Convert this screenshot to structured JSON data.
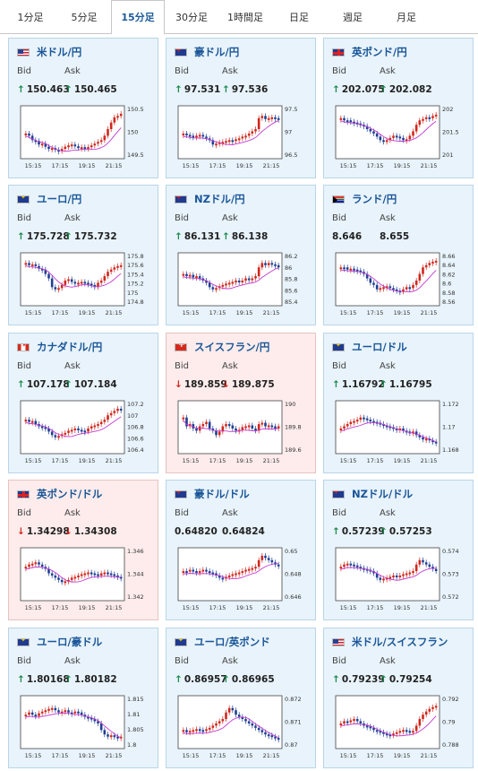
{
  "tabs": [
    "1分足",
    "5分足",
    "15分足",
    "30分足",
    "1時間足",
    "日足",
    "週足",
    "月足"
  ],
  "active_tab": "15分足",
  "labels": {
    "bid": "Bid",
    "ask": "Ask"
  },
  "x_ticks": [
    "15:15",
    "17:15",
    "19:15",
    "21:15"
  ],
  "colors": {
    "up": "#d1271d",
    "down": "#1e3f93",
    "ma": "#c43ad0",
    "card_up_bg": "#e8f3fb",
    "card_down_bg": "#fdeceb",
    "title": "#1a5698"
  },
  "pairs": [
    {
      "name": "米ドル/円",
      "flag": "us",
      "dir": "up",
      "bid": "150.463",
      "ask": "150.465",
      "ticks": [
        "150.5",
        "150",
        "149.5"
      ],
      "shape": [
        0.55,
        0.6,
        0.7,
        0.72,
        0.8,
        0.78,
        0.85,
        0.9,
        0.88,
        0.92,
        0.95,
        0.9,
        0.85,
        0.82,
        0.8,
        0.84,
        0.88,
        0.86,
        0.9,
        0.86,
        0.82,
        0.78,
        0.74,
        0.7,
        0.6,
        0.45,
        0.3,
        0.18,
        0.15,
        0.1
      ]
    },
    {
      "name": "豪ドル/円",
      "flag": "au",
      "dir": "up",
      "bid": "97.531",
      "ask": "97.536",
      "ticks": [
        "97.5",
        "97",
        "96.5"
      ],
      "shape": [
        0.55,
        0.58,
        0.6,
        0.62,
        0.6,
        0.58,
        0.62,
        0.66,
        0.7,
        0.8,
        0.78,
        0.75,
        0.74,
        0.72,
        0.7,
        0.72,
        0.68,
        0.66,
        0.62,
        0.6,
        0.55,
        0.5,
        0.45,
        0.2,
        0.15,
        0.22,
        0.2,
        0.18,
        0.2,
        0.22
      ]
    },
    {
      "name": "英ポンド/円",
      "flag": "uk",
      "dir": "up",
      "bid": "202.075",
      "ask": "202.082",
      "ticks": [
        "202",
        "201.5",
        "201"
      ],
      "shape": [
        0.2,
        0.25,
        0.25,
        0.28,
        0.3,
        0.32,
        0.35,
        0.38,
        0.45,
        0.5,
        0.55,
        0.62,
        0.7,
        0.72,
        0.7,
        0.65,
        0.6,
        0.62,
        0.65,
        0.7,
        0.68,
        0.6,
        0.5,
        0.35,
        0.25,
        0.22,
        0.18,
        0.2,
        0.15,
        0.12
      ]
    },
    {
      "name": "ユーロ/円",
      "flag": "eu",
      "dir": "up",
      "bid": "175.728",
      "ask": "175.732",
      "ticks": [
        "175.8",
        "175.6",
        "175.4",
        "175.2",
        "175",
        "174.8"
      ],
      "shape": [
        0.15,
        0.2,
        0.18,
        0.22,
        0.28,
        0.3,
        0.4,
        0.5,
        0.7,
        0.75,
        0.72,
        0.65,
        0.55,
        0.52,
        0.58,
        0.62,
        0.6,
        0.58,
        0.6,
        0.62,
        0.65,
        0.7,
        0.6,
        0.55,
        0.45,
        0.35,
        0.3,
        0.25,
        0.22,
        0.2
      ]
    },
    {
      "name": "NZドル/円",
      "flag": "nz",
      "dir": "up",
      "bid": "86.131",
      "ask": "86.138",
      "ticks": [
        "86.2",
        "86",
        "85.8",
        "85.6",
        "85.4"
      ],
      "shape": [
        0.4,
        0.45,
        0.42,
        0.48,
        0.45,
        0.5,
        0.55,
        0.6,
        0.7,
        0.75,
        0.72,
        0.68,
        0.65,
        0.62,
        0.6,
        0.58,
        0.55,
        0.58,
        0.55,
        0.5,
        0.52,
        0.5,
        0.45,
        0.25,
        0.15,
        0.2,
        0.15,
        0.18,
        0.2,
        0.25
      ]
    },
    {
      "name": "ランド/円",
      "flag": "za",
      "dir": "up",
      "bid": "8.646",
      "ask": "8.655",
      "ticks": [
        "8.66",
        "8.64",
        "8.62",
        "8.6",
        "8.58",
        "8.56"
      ],
      "shape": [
        0.25,
        0.25,
        0.3,
        0.28,
        0.3,
        0.32,
        0.35,
        0.4,
        0.5,
        0.6,
        0.65,
        0.75,
        0.72,
        0.7,
        0.68,
        0.72,
        0.75,
        0.78,
        0.8,
        0.75,
        0.7,
        0.72,
        0.65,
        0.55,
        0.4,
        0.25,
        0.2,
        0.15,
        0.12,
        0.1
      ]
    },
    {
      "name": "カナダドル/円",
      "flag": "ca",
      "dir": "up",
      "bid": "107.178",
      "ask": "107.184",
      "ticks": [
        "107.2",
        "107",
        "106.8",
        "106.6",
        "106.4"
      ],
      "shape": [
        0.35,
        0.4,
        0.38,
        0.45,
        0.5,
        0.52,
        0.55,
        0.62,
        0.7,
        0.75,
        0.72,
        0.68,
        0.65,
        0.6,
        0.58,
        0.55,
        0.58,
        0.6,
        0.62,
        0.55,
        0.5,
        0.48,
        0.45,
        0.4,
        0.35,
        0.25,
        0.2,
        0.15,
        0.1,
        0.1
      ]
    },
    {
      "name": "スイスフラン/円",
      "flag": "ch",
      "dir": "down",
      "bid": "189.859",
      "ask": "189.875",
      "ticks": [
        "190",
        "189.8",
        "189.6"
      ],
      "shape": [
        0.3,
        0.5,
        0.45,
        0.55,
        0.6,
        0.5,
        0.45,
        0.4,
        0.55,
        0.6,
        0.7,
        0.62,
        0.5,
        0.45,
        0.48,
        0.55,
        0.6,
        0.58,
        0.52,
        0.5,
        0.48,
        0.55,
        0.6,
        0.45,
        0.42,
        0.5,
        0.48,
        0.5,
        0.55,
        0.5
      ]
    },
    {
      "name": "ユーロ/ドル",
      "flag": "eu",
      "dir": "up",
      "bid": "1.16792",
      "ask": "1.16795",
      "ticks": [
        "1.172",
        "1.17",
        "1.168"
      ],
      "shape": [
        0.55,
        0.5,
        0.45,
        0.4,
        0.38,
        0.35,
        0.3,
        0.32,
        0.35,
        0.38,
        0.4,
        0.42,
        0.45,
        0.48,
        0.5,
        0.52,
        0.55,
        0.58,
        0.55,
        0.6,
        0.62,
        0.65,
        0.62,
        0.7,
        0.75,
        0.8,
        0.78,
        0.82,
        0.85,
        0.88
      ]
    },
    {
      "name": "英ポンド/ドル",
      "flag": "uk",
      "dir": "down",
      "bid": "1.34298",
      "ask": "1.34308",
      "ticks": [
        "1.346",
        "1.344",
        "1.342"
      ],
      "shape": [
        0.35,
        0.3,
        0.28,
        0.25,
        0.3,
        0.35,
        0.4,
        0.5,
        0.55,
        0.6,
        0.65,
        0.7,
        0.68,
        0.65,
        0.6,
        0.58,
        0.55,
        0.52,
        0.5,
        0.48,
        0.5,
        0.52,
        0.55,
        0.5,
        0.48,
        0.5,
        0.52,
        0.55,
        0.58,
        0.6
      ]
    },
    {
      "name": "豪ドル/ドル",
      "flag": "au",
      "dir": "up",
      "bid": "0.64820",
      "ask": "0.64824",
      "ticks": [
        "0.65",
        "0.648",
        "0.646"
      ],
      "shape": [
        0.45,
        0.45,
        0.42,
        0.45,
        0.48,
        0.45,
        0.42,
        0.45,
        0.48,
        0.5,
        0.55,
        0.6,
        0.62,
        0.58,
        0.55,
        0.52,
        0.5,
        0.48,
        0.45,
        0.42,
        0.4,
        0.38,
        0.35,
        0.2,
        0.1,
        0.15,
        0.2,
        0.25,
        0.3,
        0.32
      ]
    },
    {
      "name": "NZドル/ドル",
      "flag": "nz",
      "dir": "up",
      "bid": "0.57239",
      "ask": "0.57253",
      "ticks": [
        "0.574",
        "0.573",
        "0.572"
      ],
      "shape": [
        0.35,
        0.3,
        0.28,
        0.3,
        0.32,
        0.35,
        0.38,
        0.4,
        0.42,
        0.45,
        0.5,
        0.6,
        0.65,
        0.62,
        0.6,
        0.58,
        0.55,
        0.58,
        0.55,
        0.52,
        0.5,
        0.48,
        0.45,
        0.3,
        0.2,
        0.25,
        0.3,
        0.35,
        0.4,
        0.45
      ]
    },
    {
      "name": "ユーロ/豪ドル",
      "flag": "eu",
      "dir": "up",
      "bid": "1.80168",
      "ask": "1.80182",
      "ticks": [
        "1.815",
        "1.81",
        "1.805",
        "1.8"
      ],
      "shape": [
        0.35,
        0.3,
        0.35,
        0.38,
        0.32,
        0.28,
        0.25,
        0.22,
        0.2,
        0.25,
        0.3,
        0.28,
        0.25,
        0.3,
        0.32,
        0.28,
        0.3,
        0.35,
        0.4,
        0.42,
        0.45,
        0.5,
        0.55,
        0.7,
        0.8,
        0.85,
        0.82,
        0.85,
        0.88,
        0.85
      ]
    },
    {
      "name": "ユーロ/英ポンド",
      "flag": "eu",
      "dir": "up",
      "bid": "0.86957",
      "ask": "0.86965",
      "ticks": [
        "0.872",
        "0.871",
        "0.87"
      ],
      "shape": [
        0.7,
        0.75,
        0.72,
        0.7,
        0.68,
        0.7,
        0.72,
        0.68,
        0.65,
        0.6,
        0.55,
        0.5,
        0.45,
        0.3,
        0.2,
        0.25,
        0.35,
        0.4,
        0.45,
        0.5,
        0.55,
        0.6,
        0.65,
        0.7,
        0.75,
        0.8,
        0.82,
        0.85,
        0.88,
        0.9
      ]
    },
    {
      "name": "米ドル/スイスフラン",
      "flag": "us",
      "dir": "up",
      "bid": "0.79239",
      "ask": "0.79254",
      "ticks": [
        "0.792",
        "0.79",
        "0.788"
      ],
      "shape": [
        0.55,
        0.5,
        0.52,
        0.48,
        0.45,
        0.5,
        0.55,
        0.6,
        0.62,
        0.65,
        0.7,
        0.72,
        0.75,
        0.78,
        0.8,
        0.82,
        0.78,
        0.75,
        0.72,
        0.7,
        0.72,
        0.75,
        0.72,
        0.6,
        0.45,
        0.35,
        0.28,
        0.22,
        0.18,
        0.15
      ]
    }
  ]
}
